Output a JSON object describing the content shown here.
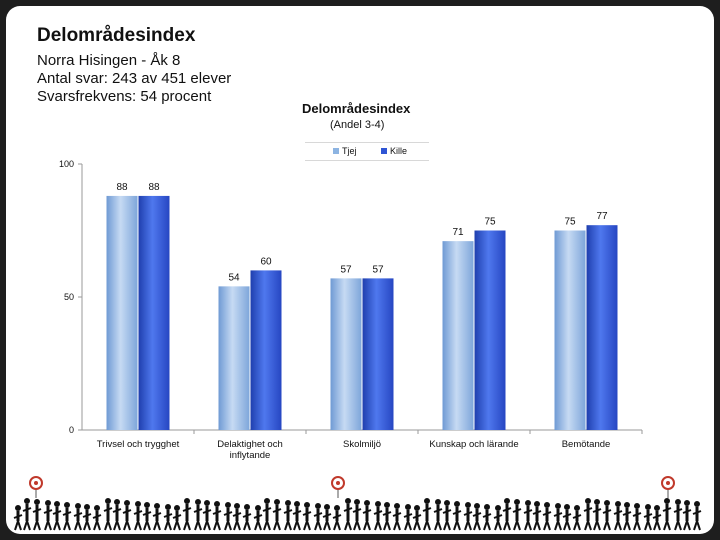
{
  "slide": {
    "title": "Delområdesindex",
    "lines": [
      "Norra Hisingen - Åk 8",
      "Antal svar: 243 av 451 elever",
      "Svarsfrekvens: 54 procent"
    ]
  },
  "chart_data": {
    "type": "bar",
    "title": "Delområdesindex",
    "subtitle": "(Andel 3-4)",
    "categories": [
      [
        "Trivsel och trygghet"
      ],
      [
        "Delaktighet och",
        "inflytande"
      ],
      [
        "Skolmiljö"
      ],
      [
        "Kunskap och lärande"
      ],
      [
        "Bemötande"
      ]
    ],
    "series": [
      {
        "name": "Tjej",
        "values": [
          88,
          54,
          57,
          71,
          75
        ],
        "color": "#8db4e2"
      },
      {
        "name": "Kille",
        "values": [
          88,
          60,
          57,
          75,
          77
        ],
        "color": "#2f55d4"
      }
    ],
    "ylim": [
      0,
      100
    ],
    "yticks": [
      0,
      50,
      100
    ],
    "legend_position": "top",
    "grid": false
  },
  "decor": {
    "footer": "crowd-silhouette-strip",
    "crowd_color": "#111111",
    "target_color": "#c0392b"
  }
}
